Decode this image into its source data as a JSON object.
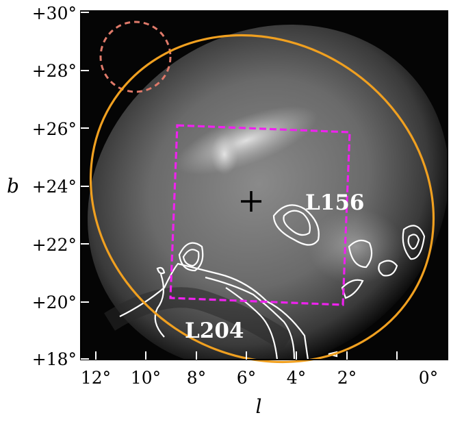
{
  "figure": {
    "xlabel": "l",
    "ylabel": "b",
    "x_ticks": [
      "12°",
      "10°",
      "8°",
      "6°",
      "4°",
      "2°",
      "0°"
    ],
    "y_ticks": [
      "+30°",
      "+28°",
      "+26°",
      "+24°",
      "+22°",
      "+20°",
      "+18°"
    ],
    "labels": {
      "cloud_north": "L156",
      "cloud_south": "L204"
    },
    "overlays": [
      {
        "name": "beam-circle",
        "style": "dashed",
        "color": "#e07a6a"
      },
      {
        "name": "shell-ellipse",
        "style": "solid",
        "color": "#f0a020"
      },
      {
        "name": "survey-box",
        "style": "dashed",
        "color": "#ee22ee"
      },
      {
        "name": "center-cross",
        "style": "solid",
        "color": "#000000"
      },
      {
        "name": "cloud-contours",
        "style": "solid",
        "color": "#ffffff"
      }
    ]
  }
}
